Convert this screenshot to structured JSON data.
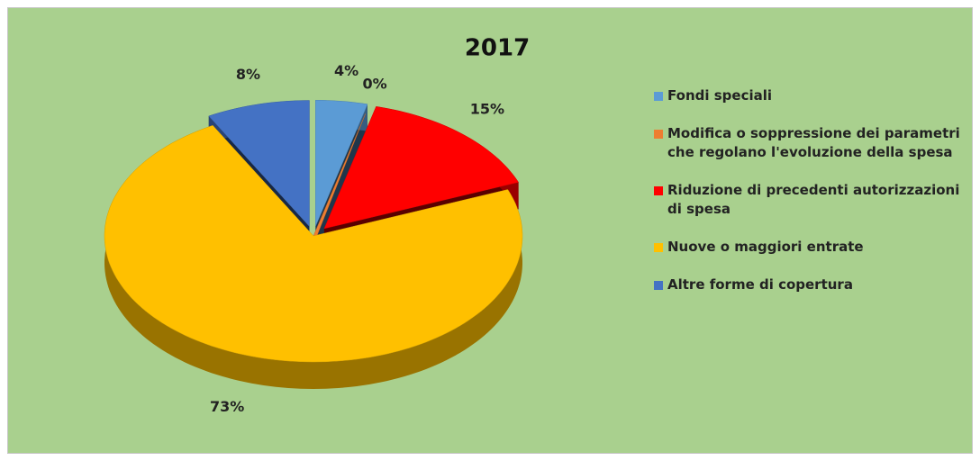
{
  "chart_data": {
    "type": "pie3d",
    "title": "2017",
    "categories": [
      "Fondi speciali",
      "Modifica o soppressione dei parametri che regolano l'evoluzione della spesa",
      "Riduzione di precedenti autorizzazioni di spesa",
      "Nuove o maggiori entrate",
      "Altre forme di copertura"
    ],
    "values": [
      4,
      0,
      15,
      73,
      8
    ],
    "value_labels": [
      "4%",
      "0%",
      "15%",
      "73%",
      "8%"
    ],
    "colors": [
      "#5b9bd5",
      "#ed7d31",
      "#ff0000",
      "#ffc000",
      "#4472c4"
    ],
    "exploded": [
      true,
      false,
      true,
      false,
      true
    ],
    "legend": "right"
  }
}
